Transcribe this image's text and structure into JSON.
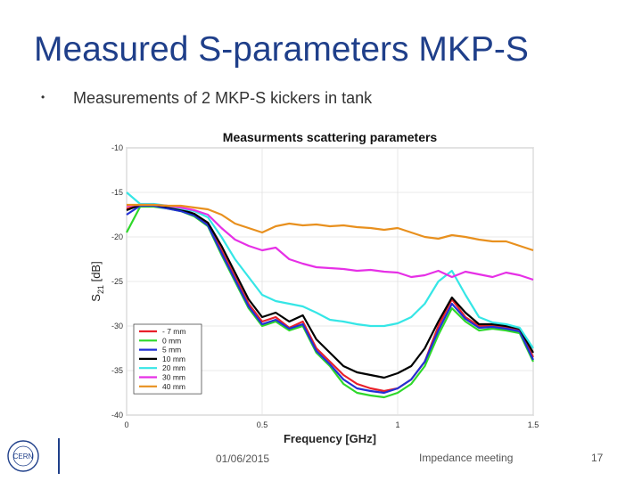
{
  "slide": {
    "title": "Measured S-parameters MKP-S",
    "bullet": "Measurements of 2 MKP-S kickers in tank",
    "footer_date": "01/06/2015",
    "footer_meeting": "Impedance meeting",
    "page_number": "17",
    "logo_text": "CERN"
  },
  "chart_data": {
    "type": "line",
    "title": "Measurments scattering parameters",
    "xlabel": "Frequency [GHz]",
    "ylabel": "S21 [dB]",
    "xlim": [
      0,
      1.5
    ],
    "ylim": [
      -40,
      -10
    ],
    "xticks": [
      "0",
      "0.5",
      "1",
      "1.5"
    ],
    "yticks": [
      "-10",
      "-15",
      "-20",
      "-25",
      "-30",
      "-35",
      "-40"
    ],
    "grid": true,
    "legend_position": "bottom-left",
    "x": [
      0,
      0.05,
      0.1,
      0.15,
      0.2,
      0.25,
      0.3,
      0.35,
      0.4,
      0.45,
      0.5,
      0.55,
      0.6,
      0.65,
      0.7,
      0.75,
      0.8,
      0.85,
      0.9,
      0.95,
      1.0,
      1.05,
      1.1,
      1.15,
      1.2,
      1.25,
      1.3,
      1.35,
      1.4,
      1.45,
      1.5
    ],
    "series": [
      {
        "name": "- 7 mm",
        "color": "#e8202a",
        "values": [
          -16.8,
          -16.5,
          -16.5,
          -16.7,
          -17.0,
          -17.5,
          -18.5,
          -21.5,
          -24.5,
          -27.5,
          -29.5,
          -29.0,
          -30.2,
          -29.5,
          -32.5,
          -34.0,
          -35.5,
          -36.5,
          -37.0,
          -37.3,
          -37.0,
          -36.0,
          -34.0,
          -30.0,
          -27.0,
          -29.0,
          -30.0,
          -30.0,
          -30.2,
          -30.5,
          -33.5
        ]
      },
      {
        "name": "0 mm",
        "color": "#2ed82a",
        "values": [
          -19.5,
          -16.6,
          -16.6,
          -16.8,
          -17.1,
          -17.7,
          -18.8,
          -22.0,
          -25.0,
          -28.0,
          -30.0,
          -29.5,
          -30.5,
          -30.0,
          -33.0,
          -34.5,
          -36.5,
          -37.5,
          -37.8,
          -38.0,
          -37.5,
          -36.5,
          -34.5,
          -31.0,
          -28.0,
          -29.5,
          -30.5,
          -30.3,
          -30.5,
          -30.8,
          -34.0
        ]
      },
      {
        "name": "5 mm",
        "color": "#2230d6",
        "values": [
          -17.5,
          -16.5,
          -16.5,
          -16.8,
          -17.1,
          -17.6,
          -18.7,
          -21.8,
          -24.8,
          -27.8,
          -29.8,
          -29.3,
          -30.3,
          -29.8,
          -32.8,
          -34.3,
          -36.0,
          -37.0,
          -37.3,
          -37.5,
          -37.0,
          -36.0,
          -34.0,
          -30.5,
          -27.5,
          -29.2,
          -30.2,
          -30.1,
          -30.3,
          -30.6,
          -33.8
        ]
      },
      {
        "name": "10 mm",
        "color": "#000000",
        "values": [
          -17.0,
          -16.4,
          -16.4,
          -16.6,
          -16.9,
          -17.4,
          -18.4,
          -21.0,
          -24.0,
          -27.0,
          -29.0,
          -28.5,
          -29.5,
          -28.8,
          -31.5,
          -33.0,
          -34.5,
          -35.2,
          -35.5,
          -35.8,
          -35.3,
          -34.5,
          -32.5,
          -29.5,
          -26.8,
          -28.5,
          -29.8,
          -29.8,
          -30.0,
          -30.3,
          -33.0
        ]
      },
      {
        "name": "20 mm",
        "color": "#35e6e6",
        "values": [
          -15.0,
          -16.3,
          -16.3,
          -16.5,
          -16.8,
          -17.1,
          -17.8,
          -20.0,
          -22.5,
          -24.5,
          -26.5,
          -27.2,
          -27.5,
          -27.8,
          -28.5,
          -29.3,
          -29.5,
          -29.8,
          -30.0,
          -30.0,
          -29.7,
          -29.0,
          -27.5,
          -25.0,
          -23.8,
          -26.5,
          -29.0,
          -29.6,
          -29.8,
          -30.2,
          -32.5
        ]
      },
      {
        "name": "30 mm",
        "color": "#e630e6",
        "values": [
          -16.5,
          -16.4,
          -16.4,
          -16.5,
          -16.7,
          -17.0,
          -17.5,
          -19.0,
          -20.3,
          -21.0,
          -21.5,
          -21.2,
          -22.5,
          -23.0,
          -23.4,
          -23.5,
          -23.6,
          -23.8,
          -23.7,
          -23.9,
          -24.0,
          -24.5,
          -24.3,
          -23.8,
          -24.5,
          -23.9,
          -24.2,
          -24.5,
          -24.0,
          -24.3,
          -24.8
        ]
      },
      {
        "name": "40 mm",
        "color": "#e8901e",
        "values": [
          -16.4,
          -16.4,
          -16.4,
          -16.5,
          -16.5,
          -16.7,
          -16.9,
          -17.5,
          -18.5,
          -19.0,
          -19.5,
          -18.8,
          -18.5,
          -18.7,
          -18.6,
          -18.8,
          -18.7,
          -18.9,
          -19.0,
          -19.2,
          -19.0,
          -19.5,
          -20.0,
          -20.2,
          -19.8,
          -20.0,
          -20.3,
          -20.5,
          -20.5,
          -21.0,
          -21.5
        ]
      }
    ]
  }
}
